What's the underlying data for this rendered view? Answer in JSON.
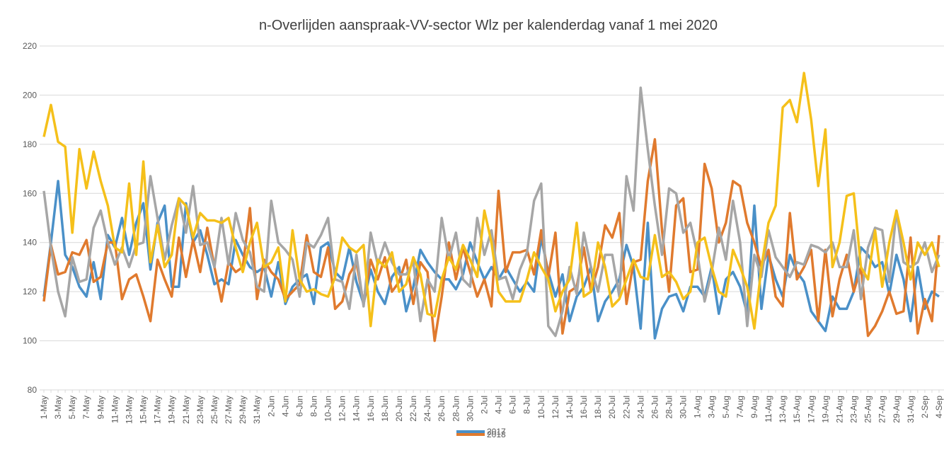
{
  "chart_data": {
    "type": "line",
    "title": "n-Overlijden  aanspraak-VV-sector  Wlz  per  kalenderdag  vanaf  1  mei  2020",
    "categories": [
      "1-May",
      null,
      "3-May",
      null,
      "5-May",
      null,
      "7-May",
      null,
      "9-May",
      null,
      "11-May",
      null,
      "13-May",
      null,
      "15-May",
      null,
      "17-May",
      null,
      "19-May",
      null,
      "21-May",
      null,
      "23-May",
      null,
      "25-May",
      null,
      "27-May",
      null,
      "29-May",
      null,
      "31-May",
      null,
      "2-Jun",
      null,
      "4-Jun",
      null,
      "6-Jun",
      null,
      "8-Jun",
      null,
      "10-Jun",
      null,
      "12-Jun",
      null,
      "14-Jun",
      null,
      "16-Jun",
      null,
      "18-Jun",
      null,
      "20-Jun",
      null,
      "22-Jun",
      null,
      "24-Jun",
      null,
      "26-Jun",
      null,
      "28-Jun",
      null,
      "30-Jun",
      null,
      "2-Jul",
      null,
      "4-Jul",
      null,
      "6-Jul",
      null,
      "8-Jul",
      null,
      "10-Jul",
      null,
      "12-Jul",
      null,
      "14-Jul",
      null,
      "16-Jul",
      null,
      "18-Jul",
      null,
      "20-Jul",
      null,
      "22-Jul",
      null,
      "24-Jul",
      null,
      "26-Jul",
      null,
      "28-Jul",
      null,
      "30-Jul",
      null,
      "1-Aug",
      null,
      "3-Aug",
      null,
      "5-Aug",
      null,
      "7-Aug",
      null,
      "9-Aug",
      null,
      "11-Aug",
      null,
      "13-Aug",
      null,
      "15-Aug",
      null,
      "17-Aug",
      null,
      "19-Aug",
      null,
      "21-Aug",
      null,
      "23-Aug",
      null,
      "25-Aug",
      null,
      "27-Aug",
      null,
      "29-Aug",
      null,
      "31-Aug",
      null,
      "2-Sep",
      null,
      "4-Sep"
    ],
    "series": [
      {
        "name": "2017",
        "color": "#4a90c8",
        "values": [
          118,
          140,
          165,
          135,
          130,
          122,
          118,
          132,
          117,
          143,
          138,
          150,
          135,
          148,
          156,
          129,
          148,
          155,
          122,
          122,
          156,
          140,
          145,
          135,
          123,
          125,
          123,
          141,
          135,
          130,
          128,
          130,
          118,
          132,
          115,
          122,
          125,
          127,
          115,
          138,
          140,
          128,
          125,
          138,
          124,
          115,
          129,
          120,
          115,
          126,
          130,
          112,
          122,
          137,
          132,
          128,
          125,
          125,
          121,
          127,
          140,
          132,
          125,
          130,
          125,
          130,
          125,
          120,
          124,
          120,
          142,
          128,
          118,
          127,
          108,
          118,
          122,
          130,
          108,
          116,
          120,
          125,
          139,
          130,
          105,
          148,
          101,
          113,
          118,
          119,
          112,
          122,
          122,
          118,
          130,
          111,
          125,
          128,
          122,
          111,
          155,
          113,
          135,
          125,
          118,
          135,
          128,
          124,
          112,
          108,
          104,
          118,
          113,
          113,
          120,
          138,
          135,
          130,
          132,
          119,
          135,
          125,
          108,
          130,
          113,
          120,
          118
        ]
      },
      {
        "name": "2018",
        "color": "#e07a2e",
        "values": [
          116,
          139,
          127,
          128,
          136,
          135,
          141,
          124,
          126,
          140,
          140,
          117,
          125,
          127,
          118,
          108,
          133,
          125,
          118,
          142,
          126,
          141,
          128,
          146,
          130,
          116,
          132,
          128,
          130,
          154,
          117,
          133,
          128,
          125,
          117,
          120,
          123,
          143,
          128,
          126,
          138,
          113,
          116,
          127,
          132,
          115,
          133,
          125,
          134,
          120,
          124,
          133,
          115,
          132,
          128,
          100,
          118,
          140,
          125,
          138,
          128,
          118,
          125,
          114,
          161,
          128,
          136,
          136,
          137,
          127,
          145,
          126,
          144,
          103,
          120,
          122,
          138,
          120,
          130,
          147,
          142,
          152,
          115,
          132,
          133,
          165,
          182,
          145,
          120,
          155,
          158,
          128,
          129,
          172,
          162,
          140,
          148,
          165,
          163,
          148,
          140,
          130,
          137,
          118,
          114,
          152,
          125,
          130,
          137,
          108,
          137,
          110,
          125,
          135,
          120,
          130,
          102,
          106,
          112,
          120,
          111,
          112,
          142,
          103,
          117,
          108,
          143
        ]
      },
      {
        "color": "#a6a6a6",
        "values": [
          161,
          138,
          120,
          110,
          134,
          124,
          125,
          146,
          153,
          140,
          131,
          138,
          130,
          139,
          140,
          167,
          150,
          133,
          147,
          158,
          144,
          163,
          139,
          140,
          130,
          150,
          131,
          152,
          141,
          136,
          122,
          120,
          157,
          140,
          137,
          133,
          118,
          140,
          138,
          143,
          150,
          125,
          124,
          113,
          135,
          114,
          144,
          131,
          140,
          132,
          127,
          127,
          132,
          108,
          125,
          120,
          150,
          133,
          144,
          125,
          122,
          150,
          135,
          145,
          125,
          126,
          117,
          129,
          136,
          157,
          164,
          106,
          102,
          112,
          130,
          119,
          144,
          130,
          120,
          135,
          135,
          118,
          167,
          153,
          203,
          178,
          155,
          135,
          162,
          160,
          144,
          148,
          135,
          116,
          128,
          146,
          133,
          157,
          140,
          106,
          135,
          126,
          145,
          134,
          130,
          126,
          132,
          131,
          139,
          138,
          136,
          140,
          130,
          130,
          145,
          117,
          138,
          146,
          145,
          124,
          153,
          132,
          130,
          132,
          140,
          128,
          135
        ]
      },
      {
        "color": "#f5c01a",
        "values": [
          183,
          196,
          181,
          179,
          144,
          178,
          162,
          177,
          165,
          155,
          138,
          136,
          164,
          135,
          173,
          132,
          147,
          130,
          135,
          158,
          155,
          142,
          152,
          149,
          149,
          148,
          150,
          138,
          128,
          140,
          148,
          130,
          132,
          138,
          116,
          145,
          125,
          120,
          121,
          119,
          118,
          126,
          142,
          138,
          136,
          139,
          106,
          133,
          130,
          136,
          120,
          123,
          134,
          127,
          111,
          110,
          125,
          134,
          129,
          139,
          133,
          126,
          153,
          140,
          120,
          116,
          116,
          116,
          125,
          136,
          130,
          125,
          112,
          120,
          125,
          148,
          118,
          120,
          140,
          130,
          114,
          117,
          125,
          133,
          126,
          125,
          143,
          126,
          128,
          124,
          117,
          120,
          140,
          142,
          130,
          120,
          118,
          137,
          130,
          122,
          105,
          130,
          148,
          155,
          195,
          198,
          189,
          209,
          190,
          163,
          186,
          130,
          140,
          159,
          160,
          130,
          125,
          145,
          122,
          140,
          153,
          140,
          125,
          140,
          135,
          140,
          130
        ]
      }
    ],
    "ylim": [
      80,
      220
    ],
    "yticks": [
      80,
      100,
      120,
      140,
      160,
      180,
      200,
      220
    ],
    "grid": true,
    "legend": "bottom"
  }
}
